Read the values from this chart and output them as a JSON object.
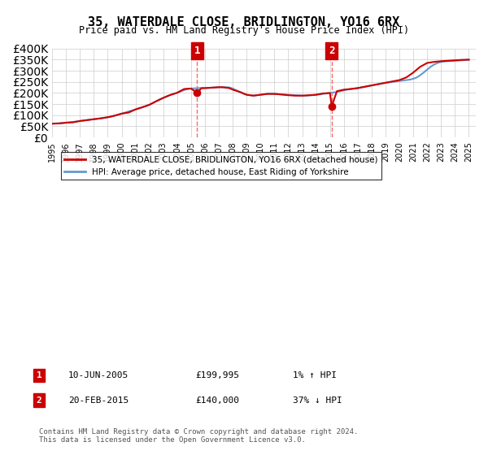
{
  "title": "35, WATERDALE CLOSE, BRIDLINGTON, YO16 6RX",
  "subtitle": "Price paid vs. HM Land Registry's House Price Index (HPI)",
  "legend_line1": "35, WATERDALE CLOSE, BRIDLINGTON, YO16 6RX (detached house)",
  "legend_line2": "HPI: Average price, detached house, East Riding of Yorkshire",
  "transaction1_label": "1",
  "transaction1_date": "10-JUN-2005",
  "transaction1_price": "£199,995",
  "transaction1_hpi": "1% ↑ HPI",
  "transaction1_year": 2005.44,
  "transaction1_value": 199995,
  "transaction2_label": "2",
  "transaction2_date": "20-FEB-2015",
  "transaction2_price": "£140,000",
  "transaction2_hpi": "37% ↓ HPI",
  "transaction2_year": 2015.13,
  "transaction2_value": 140000,
  "footnote": "Contains HM Land Registry data © Crown copyright and database right 2024.\nThis data is licensed under the Open Government Licence v3.0.",
  "ylim": [
    0,
    400000
  ],
  "xlim": [
    1995,
    2025.5
  ],
  "background_color": "#ffffff",
  "grid_color": "#cccccc",
  "red_line_color": "#cc0000",
  "blue_line_color": "#6699cc",
  "vline_color": "#ff6666",
  "marker_box_color": "#cc0000",
  "hpi_years": [
    1995,
    1995.25,
    1995.5,
    1995.75,
    1996,
    1996.25,
    1996.5,
    1996.75,
    1997,
    1997.25,
    1997.5,
    1997.75,
    1998,
    1998.25,
    1998.5,
    1998.75,
    1999,
    1999.25,
    1999.5,
    1999.75,
    2000,
    2000.25,
    2000.5,
    2000.75,
    2001,
    2001.25,
    2001.5,
    2001.75,
    2002,
    2002.25,
    2002.5,
    2002.75,
    2003,
    2003.25,
    2003.5,
    2003.75,
    2004,
    2004.25,
    2004.5,
    2004.75,
    2005,
    2005.25,
    2005.5,
    2005.75,
    2006,
    2006.25,
    2006.5,
    2006.75,
    2007,
    2007.25,
    2007.5,
    2007.75,
    2008,
    2008.25,
    2008.5,
    2008.75,
    2009,
    2009.25,
    2009.5,
    2009.75,
    2010,
    2010.25,
    2010.5,
    2010.75,
    2011,
    2011.25,
    2011.5,
    2011.75,
    2012,
    2012.25,
    2012.5,
    2012.75,
    2013,
    2013.25,
    2013.5,
    2013.75,
    2014,
    2014.25,
    2014.5,
    2014.75,
    2015,
    2015.25,
    2015.5,
    2015.75,
    2016,
    2016.25,
    2016.5,
    2016.75,
    2017,
    2017.25,
    2017.5,
    2017.75,
    2018,
    2018.25,
    2018.5,
    2018.75,
    2019,
    2019.25,
    2019.5,
    2019.75,
    2020,
    2020.25,
    2020.5,
    2020.75,
    2021,
    2021.25,
    2021.5,
    2021.75,
    2022,
    2022.25,
    2022.5,
    2022.75,
    2023,
    2023.25,
    2023.5,
    2023.75,
    2024,
    2024.25,
    2024.5,
    2024.75,
    2025
  ],
  "hpi_values": [
    62000,
    63000,
    64000,
    65000,
    66500,
    68000,
    70000,
    72000,
    74000,
    76000,
    78000,
    80000,
    82000,
    84000,
    86000,
    88000,
    91000,
    94000,
    98000,
    102000,
    107000,
    112000,
    117000,
    121000,
    126000,
    131000,
    136000,
    141000,
    147000,
    155000,
    163000,
    171000,
    178000,
    185000,
    191000,
    196000,
    201000,
    207000,
    213000,
    218000,
    220000,
    221000,
    222000,
    222000,
    222000,
    223000,
    224000,
    225000,
    226000,
    226000,
    226000,
    225000,
    220000,
    212000,
    205000,
    198000,
    192000,
    190000,
    188000,
    190000,
    192000,
    194000,
    196000,
    196000,
    196000,
    195000,
    194000,
    193000,
    192000,
    191000,
    190000,
    189000,
    188000,
    188000,
    189000,
    190000,
    192000,
    194000,
    196000,
    198000,
    200000,
    202000,
    205000,
    208000,
    212000,
    215000,
    218000,
    220000,
    222000,
    225000,
    228000,
    231000,
    234000,
    237000,
    240000,
    243000,
    246000,
    248000,
    250000,
    252000,
    254000,
    256000,
    258000,
    260000,
    264000,
    270000,
    280000,
    292000,
    305000,
    318000,
    328000,
    335000,
    340000,
    342000,
    343000,
    344000,
    345000,
    346000,
    347000,
    348000,
    349000
  ],
  "property_years": [
    1995,
    1995.5,
    1996,
    1996.5,
    1997,
    1997.5,
    1998,
    1998.5,
    1999,
    1999.5,
    2000,
    2000.5,
    2001,
    2001.5,
    2002,
    2002.5,
    2003,
    2003.5,
    2004,
    2004.5,
    2005,
    2005.44,
    2005.75,
    2006,
    2006.5,
    2007,
    2007.25,
    2007.5,
    2007.75,
    2008,
    2008.5,
    2009,
    2009.5,
    2010,
    2010.5,
    2011,
    2011.5,
    2012,
    2012.5,
    2013,
    2013.5,
    2014,
    2014.5,
    2015,
    2015.13,
    2015.5,
    2016,
    2016.5,
    2017,
    2017.5,
    2018,
    2018.5,
    2019,
    2019.5,
    2020,
    2020.5,
    2021,
    2021.5,
    2022,
    2022.5,
    2023,
    2023.5,
    2024,
    2024.5,
    2025
  ],
  "property_values": [
    62000,
    63000,
    66500,
    68000,
    74000,
    78000,
    82000,
    86000,
    91000,
    98000,
    107000,
    112000,
    126000,
    136000,
    147000,
    163000,
    178000,
    191000,
    201000,
    218000,
    220000,
    199995,
    222000,
    222000,
    224000,
    226000,
    226000,
    224000,
    222000,
    215000,
    205000,
    192000,
    188000,
    192000,
    196000,
    196000,
    193000,
    190000,
    188000,
    188000,
    190000,
    192000,
    198000,
    200000,
    140000,
    208000,
    215000,
    218000,
    222000,
    228000,
    234000,
    240000,
    246000,
    252000,
    258000,
    270000,
    292000,
    318000,
    335000,
    340000,
    343000,
    345000,
    347000,
    349000,
    350000
  ]
}
